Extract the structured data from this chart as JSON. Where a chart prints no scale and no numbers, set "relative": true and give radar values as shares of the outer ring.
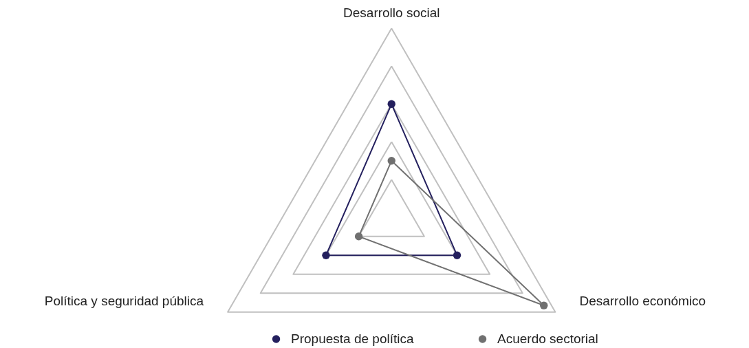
{
  "chart_data": {
    "type": "radar",
    "relative": true,
    "grid": true,
    "legend": "bottom",
    "marker": "circle",
    "line_style": "solid",
    "categories": [
      "Desarrollo social",
      "Desarrollo económico",
      "Política y seguridad pública"
    ],
    "series": [
      {
        "name": "Propuesta de política",
        "color": "#24205e",
        "values": [
          0.6,
          0.4,
          0.4
        ]
      },
      {
        "name": "Acuerdo sectorial",
        "color": "#707070",
        "values": [
          0.3,
          0.93,
          0.2
        ]
      }
    ]
  }
}
